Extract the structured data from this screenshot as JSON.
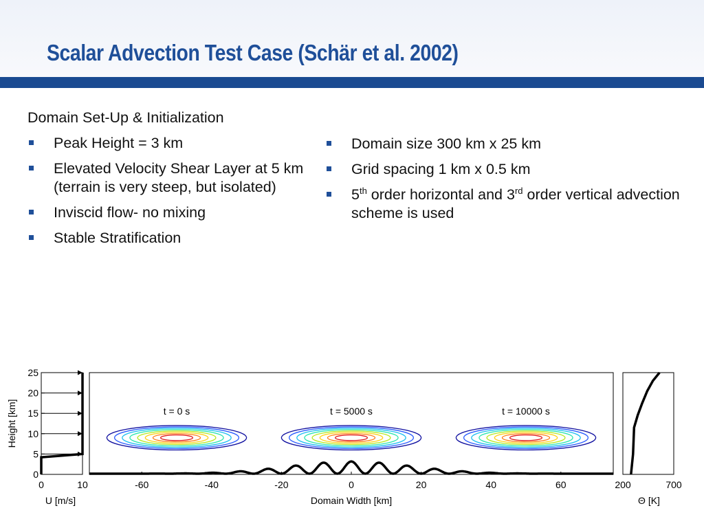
{
  "title": "Scalar Advection Test Case (Schär et al. 2002)",
  "left_column": {
    "heading": "Domain Set-Up & Initialization",
    "bullets": [
      "Peak Height = 3 km",
      "Elevated Velocity Shear Layer  at 5 km (terrain is very steep, but isolated)",
      "Inviscid flow- no mixing",
      "Stable Stratification"
    ]
  },
  "right_column": {
    "bullets": [
      {
        "text": "Domain size 300 km x 25 km"
      },
      {
        "text": "Grid spacing 1 km x 0.5 km"
      },
      {
        "parts": [
          "5",
          "th",
          " order horizontal and 3",
          "rd",
          " order vertical advection scheme is used"
        ]
      }
    ]
  },
  "colors": {
    "title": "#1f4f99",
    "rule": "#1a4a91",
    "bullet": "#1f4f99",
    "contours": [
      "#1010a0",
      "#2a5cff",
      "#1fbff0",
      "#2ee6b0",
      "#b6e820",
      "#ffd21a",
      "#ff7a10",
      "#e01010"
    ]
  },
  "chart_data": [
    {
      "type": "line",
      "panel": "velocity-profile",
      "xlabel": "U [m/s]",
      "ylabel": "Height [km]",
      "xlim": [
        0,
        10
      ],
      "ylim": [
        0,
        25
      ],
      "xticks": [
        0,
        10
      ],
      "yticks": [
        0,
        5,
        10,
        15,
        20,
        25
      ],
      "series": [
        {
          "x": [
            0,
            0,
            10,
            10
          ],
          "y": [
            0,
            4.2,
            5,
            25
          ]
        }
      ],
      "arrows": {
        "heights": [
          5,
          10,
          15,
          20,
          25
        ],
        "u": 10
      }
    },
    {
      "type": "contour",
      "panel": "advection-domain",
      "xlabel": "Domain Width [km]",
      "xlim": [
        -75,
        75
      ],
      "ylim": [
        0,
        25
      ],
      "xticks": [
        -60,
        -40,
        -20,
        0,
        20,
        40,
        60
      ],
      "blobs": [
        {
          "label": "t = 0 s",
          "center_x": -50,
          "center_y": 9,
          "half_width": 20,
          "half_height": 3
        },
        {
          "label": "t = 5000 s",
          "center_x": 0,
          "center_y": 9,
          "half_width": 20,
          "half_height": 3
        },
        {
          "label": "t = 10000 s",
          "center_x": 50,
          "center_y": 9,
          "half_width": 20,
          "half_height": 3
        }
      ],
      "contour_levels": 8,
      "terrain": {
        "peak_height_km": 3,
        "half_width_km": 25,
        "wavelength_km": 8
      }
    },
    {
      "type": "line",
      "panel": "theta-profile",
      "xlabel": "Θ [K]",
      "xlim": [
        200,
        700
      ],
      "ylim": [
        0,
        25
      ],
      "xticks": [
        200,
        700
      ],
      "series": [
        {
          "x": [
            280,
            300,
            310,
            345,
            390,
            440,
            495,
            560
          ],
          "y": [
            0,
            5,
            11.5,
            14.5,
            17.5,
            20.5,
            23,
            25
          ]
        }
      ]
    }
  ]
}
